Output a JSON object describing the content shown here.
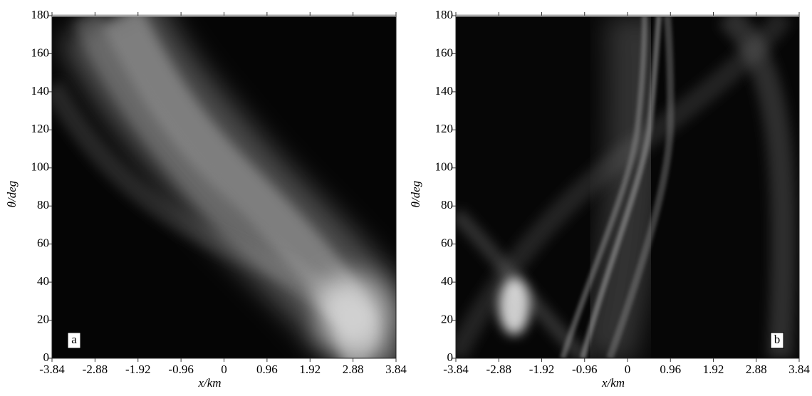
{
  "chart_data": [
    {
      "type": "heatmap",
      "panel_label": "a",
      "xlabel": "x/km",
      "ylabel": "θ/deg",
      "xlim": [
        -3.84,
        3.84
      ],
      "ylim": [
        0,
        180
      ],
      "xticks": [
        -3.84,
        -2.88,
        -1.92,
        -0.96,
        0,
        0.96,
        1.92,
        2.88,
        3.84
      ],
      "yticks": [
        0,
        20,
        40,
        60,
        80,
        100,
        120,
        140,
        160,
        180
      ]
    },
    {
      "type": "heatmap",
      "panel_label": "b",
      "xlabel": "x/km",
      "ylabel": "θ/deg",
      "xlim": [
        -3.84,
        3.84
      ],
      "ylim": [
        0,
        180
      ],
      "xticks": [
        -3.84,
        -2.88,
        -1.92,
        -0.96,
        0,
        0.96,
        1.92,
        2.88,
        3.84
      ],
      "yticks": [
        0,
        20,
        40,
        60,
        80,
        100,
        120,
        140,
        160,
        180
      ]
    }
  ]
}
